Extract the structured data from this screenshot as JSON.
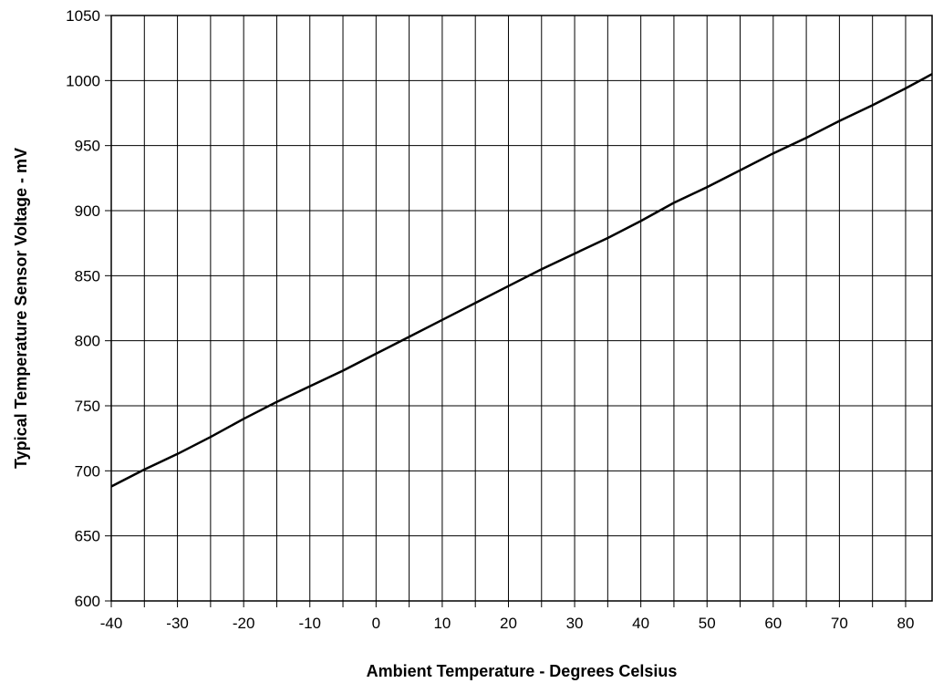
{
  "chart_data": {
    "type": "line",
    "title": "",
    "xlabel": "Ambient Temperature - Degrees Celsius",
    "ylabel": "Typical Temperature Sensor Voltage - mV",
    "xlim": [
      -40,
      84
    ],
    "ylim": [
      600,
      1050
    ],
    "x_ticks": [
      -40,
      -30,
      -20,
      -10,
      0,
      10,
      20,
      30,
      40,
      50,
      60,
      70,
      80
    ],
    "x_gridlines": [
      -40,
      -35,
      -30,
      -25,
      -20,
      -15,
      -10,
      -5,
      0,
      5,
      10,
      15,
      20,
      25,
      30,
      35,
      40,
      45,
      50,
      55,
      60,
      65,
      70,
      75,
      80
    ],
    "y_ticks": [
      600,
      650,
      700,
      750,
      800,
      850,
      900,
      950,
      1000,
      1050
    ],
    "grid": true,
    "legend": "none",
    "line_color": "#000000",
    "series": [
      {
        "x": [
          -40,
          -35,
          -30,
          -25,
          -20,
          -15,
          -10,
          -5,
          0,
          5,
          10,
          15,
          20,
          25,
          30,
          35,
          40,
          45,
          50,
          55,
          60,
          65,
          70,
          75,
          80,
          84
        ],
        "y": [
          688,
          701,
          713,
          726,
          740,
          753,
          765,
          777,
          790,
          803,
          816,
          829,
          842,
          855,
          867,
          879,
          892,
          906,
          918,
          931,
          944,
          956,
          969,
          981,
          994,
          1005
        ]
      }
    ]
  }
}
